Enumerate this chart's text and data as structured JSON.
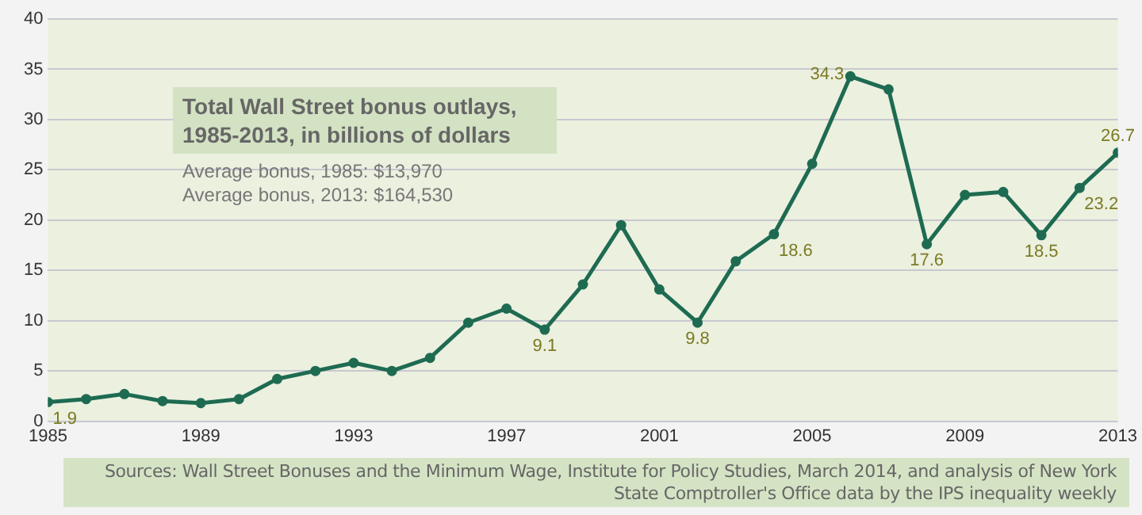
{
  "chart_data": {
    "type": "line",
    "title": "Total Wall Street bonus outlays, 1985-2013, in billions of dollars",
    "annotations": [
      "Average bonus, 1985: $13,970",
      "Average bonus, 2013: $164,530",
      "Sources: Wall Street Bonuses and the Minimum Wage, Institute for Policy Studies, March 2014, and analysis of New York State Comptroller's Office data by the IPS inequality weekly"
    ],
    "x": [
      1985,
      1986,
      1987,
      1988,
      1989,
      1990,
      1991,
      1992,
      1993,
      1994,
      1995,
      1996,
      1997,
      1998,
      1999,
      2000,
      2001,
      2002,
      2003,
      2004,
      2005,
      2006,
      2007,
      2008,
      2009,
      2010,
      2011,
      2012,
      2013
    ],
    "series": [
      {
        "color": "#1e6b52",
        "values": [
          1.9,
          2.2,
          2.7,
          2.0,
          1.8,
          2.2,
          4.2,
          5.0,
          5.8,
          5.0,
          6.3,
          9.8,
          11.2,
          9.1,
          13.6,
          19.5,
          13.1,
          9.8,
          15.9,
          18.6,
          25.6,
          34.3,
          33.0,
          17.6,
          22.5,
          22.8,
          18.5,
          23.2,
          26.7
        ],
        "value_labels": [
          "1.9",
          null,
          null,
          null,
          null,
          null,
          null,
          null,
          null,
          null,
          null,
          null,
          null,
          "9.1",
          null,
          null,
          null,
          "9.8",
          null,
          "18.6",
          null,
          "34.3",
          null,
          "17.6",
          null,
          null,
          "18.5",
          "23.2",
          "26.7"
        ]
      }
    ],
    "xlim": [
      1985,
      2013
    ],
    "xticks": [
      1985,
      1989,
      1993,
      1997,
      2001,
      2005,
      2009,
      2013
    ],
    "ylim": [
      0,
      40
    ],
    "yticks": [
      0,
      5,
      10,
      15,
      20,
      25,
      30,
      35,
      40
    ],
    "grid": "y",
    "legend": false,
    "marker": "circle",
    "line_style": "solid"
  }
}
